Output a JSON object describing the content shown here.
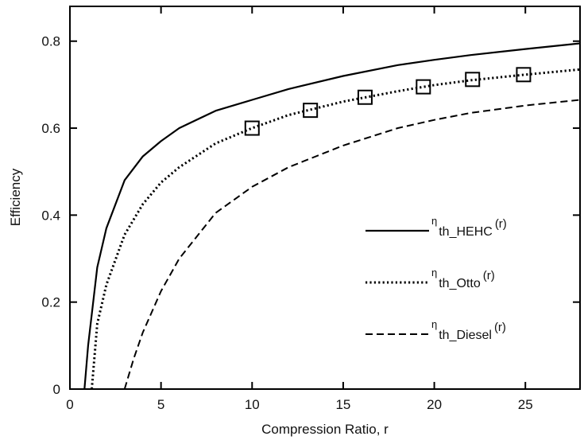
{
  "chart_data": {
    "type": "line",
    "xlabel": "Compression Ratio, r",
    "ylabel": "Efficiency",
    "xlim": [
      0,
      28
    ],
    "ylim": [
      0,
      0.88
    ],
    "x_ticks": [
      0,
      5,
      10,
      15,
      20,
      25
    ],
    "y_ticks": [
      0,
      0.2,
      0.4,
      0.6,
      0.8
    ],
    "x_tick_labels": [
      "0",
      "5",
      "10",
      "15",
      "20",
      "25"
    ],
    "y_tick_labels": [
      "0",
      "0.2",
      "0.4",
      "0.6",
      "0.8"
    ],
    "grid": false,
    "legend_position": "right",
    "series": [
      {
        "name": "η th_HEHC (r)",
        "legend": {
          "symbol": "η",
          "subscript": "th_HEHC",
          "arg": "(r)"
        },
        "style": "solid",
        "x": [
          0.8,
          1.0,
          1.5,
          2,
          3,
          4,
          5,
          6,
          8,
          10,
          12,
          15,
          18,
          20,
          22,
          25,
          28
        ],
        "y": [
          0.0,
          0.1,
          0.28,
          0.37,
          0.48,
          0.535,
          0.57,
          0.6,
          0.64,
          0.665,
          0.69,
          0.72,
          0.745,
          0.757,
          0.768,
          0.782,
          0.795
        ]
      },
      {
        "name": "η th_Otto (r)",
        "legend": {
          "symbol": "η",
          "subscript": "th_Otto",
          "arg": "(r)"
        },
        "style": "dotted",
        "marker_points": {
          "x": [
            10,
            13.2,
            16.2,
            19.4,
            22.1,
            24.9
          ],
          "y": [
            0.6,
            0.641,
            0.671,
            0.695,
            0.712,
            0.723
          ]
        },
        "x": [
          1.2,
          1.5,
          2,
          3,
          4,
          5,
          6,
          8,
          10,
          12,
          15,
          18,
          20,
          22,
          25,
          28
        ],
        "y": [
          0.0,
          0.15,
          0.24,
          0.355,
          0.425,
          0.475,
          0.51,
          0.565,
          0.6,
          0.63,
          0.661,
          0.685,
          0.699,
          0.71,
          0.723,
          0.735
        ]
      },
      {
        "name": "η th_Diesel (r)",
        "legend": {
          "symbol": "η",
          "subscript": "th_Diesel",
          "arg": "(r)"
        },
        "style": "dashed",
        "x": [
          3.0,
          3.5,
          4,
          5,
          6,
          8,
          10,
          12,
          15,
          18,
          20,
          22,
          25,
          28
        ],
        "y": [
          0.0,
          0.07,
          0.13,
          0.225,
          0.3,
          0.405,
          0.465,
          0.51,
          0.56,
          0.6,
          0.619,
          0.635,
          0.652,
          0.665
        ]
      }
    ]
  }
}
